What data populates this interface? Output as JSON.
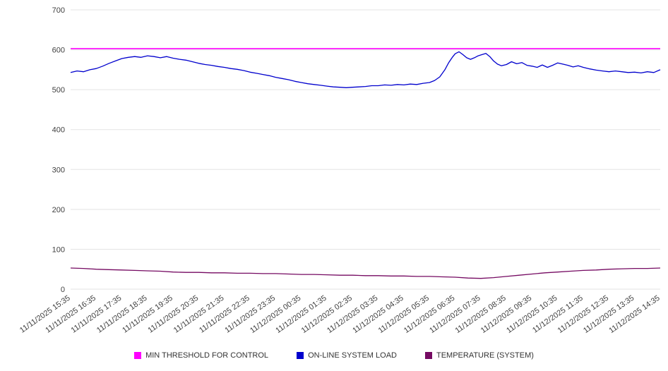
{
  "chart_data": {
    "type": "line",
    "title": "",
    "xlabel": "",
    "ylabel": "",
    "ylim": [
      0,
      700
    ],
    "y_ticks": [
      0,
      100,
      200,
      300,
      400,
      500,
      600,
      700
    ],
    "grid": "horizontal",
    "legend_position": "bottom",
    "x_unit": "tick index (1 tick = 1 hour)",
    "x_tick_labels": [
      "11/11/2025 15:35",
      "11/11/2025 16:35",
      "11/11/2025 17:35",
      "11/11/2025 18:35",
      "11/11/2025 19:35",
      "11/11/2025 20:35",
      "11/11/2025 21:35",
      "11/11/2025 22:35",
      "11/11/2025 23:35",
      "11/12/2025 00:35",
      "11/12/2025 01:35",
      "11/12/2025 02:35",
      "11/12/2025 03:35",
      "11/12/2025 04:35",
      "11/12/2025 05:35",
      "11/12/2025 06:35",
      "11/12/2025 07:35",
      "11/12/2025 08:35",
      "11/12/2025 09:35",
      "11/12/2025 10:35",
      "11/12/2025 11:35",
      "11/12/2025 12:35",
      "11/12/2025 13:35",
      "11/12/2025 14:35"
    ],
    "series": [
      {
        "id": "min-threshold",
        "name": "MIN THRESHOLD FOR CONTROL",
        "color": "#ff00ff",
        "type": "constant",
        "value": 603
      },
      {
        "id": "online-system-load",
        "name": "ON-LINE SYSTEM LOAD",
        "color": "#0000cd",
        "type": "line",
        "x": [
          0,
          0.25,
          0.5,
          0.75,
          1,
          1.25,
          1.5,
          1.75,
          2,
          2.25,
          2.5,
          2.75,
          3,
          3.25,
          3.5,
          3.75,
          4,
          4.25,
          4.5,
          4.75,
          5,
          5.25,
          5.5,
          5.75,
          6,
          6.25,
          6.5,
          6.75,
          7,
          7.25,
          7.5,
          7.75,
          8,
          8.25,
          8.5,
          8.75,
          9,
          9.25,
          9.5,
          9.75,
          10,
          10.25,
          10.5,
          10.75,
          11,
          11.25,
          11.5,
          11.75,
          12,
          12.25,
          12.5,
          12.75,
          13,
          13.25,
          13.5,
          13.75,
          14,
          14.2,
          14.4,
          14.6,
          14.75,
          14.9,
          15,
          15.15,
          15.3,
          15.45,
          15.6,
          15.75,
          15.9,
          16.05,
          16.2,
          16.35,
          16.5,
          16.65,
          16.8,
          17,
          17.2,
          17.4,
          17.6,
          17.8,
          18,
          18.2,
          18.4,
          18.6,
          18.8,
          19,
          19.2,
          19.4,
          19.6,
          19.8,
          20,
          20.25,
          20.5,
          20.75,
          21,
          21.25,
          21.5,
          21.75,
          22,
          22.25,
          22.5,
          22.75,
          23
        ],
        "values": [
          543,
          547,
          545,
          550,
          553,
          559,
          566,
          572,
          578,
          581,
          583,
          581,
          585,
          583,
          580,
          583,
          579,
          576,
          574,
          570,
          566,
          563,
          561,
          558,
          556,
          553,
          551,
          548,
          544,
          541,
          538,
          535,
          531,
          528,
          525,
          521,
          518,
          515,
          513,
          511,
          509,
          507,
          506,
          505,
          506,
          507,
          508,
          510,
          510,
          512,
          511,
          513,
          512,
          514,
          513,
          516,
          518,
          523,
          532,
          550,
          568,
          582,
          590,
          595,
          588,
          580,
          576,
          580,
          585,
          588,
          591,
          583,
          572,
          564,
          560,
          563,
          570,
          565,
          568,
          561,
          559,
          556,
          562,
          556,
          561,
          567,
          564,
          561,
          557,
          560,
          556,
          552,
          549,
          547,
          545,
          547,
          545,
          543,
          544,
          542,
          545,
          543,
          550
        ]
      },
      {
        "id": "temperature-system",
        "name": "TEMPERATURE (SYSTEM)",
        "color": "#750a62",
        "type": "line",
        "x": [
          0,
          0.5,
          1,
          1.5,
          2,
          2.5,
          3,
          3.5,
          4,
          4.5,
          5,
          5.5,
          6,
          6.5,
          7,
          7.5,
          8,
          8.5,
          9,
          9.5,
          10,
          10.5,
          11,
          11.5,
          12,
          12.5,
          13,
          13.5,
          14,
          14.5,
          15,
          15.5,
          16,
          16.5,
          17,
          17.5,
          18,
          18.5,
          19,
          19.5,
          20,
          20.5,
          21,
          21.5,
          22,
          22.5,
          23
        ],
        "values": [
          53,
          52,
          50,
          49,
          48,
          47,
          46,
          45,
          43,
          42,
          42,
          41,
          41,
          40,
          40,
          39,
          39,
          38,
          37,
          37,
          36,
          35,
          35,
          34,
          34,
          33,
          33,
          32,
          32,
          31,
          30,
          28,
          27,
          29,
          32,
          35,
          38,
          41,
          43,
          45,
          47,
          48,
          50,
          51,
          52,
          52,
          53
        ]
      }
    ]
  }
}
